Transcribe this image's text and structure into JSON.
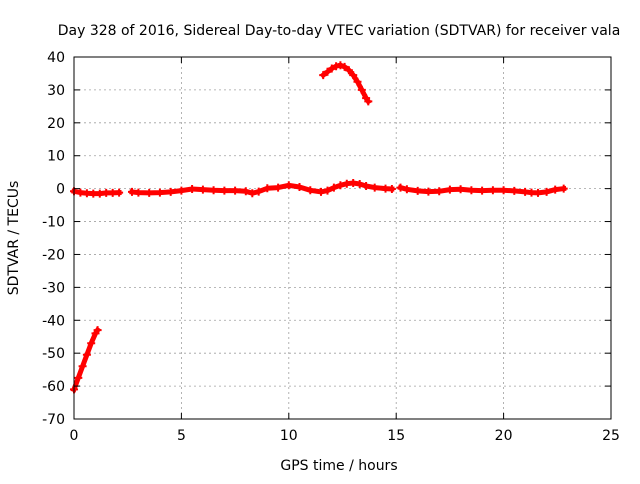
{
  "chart_data": {
    "type": "line",
    "title": "Day 328 of 2016, Sidereal Day-to-day VTEC variation (SDTVAR) for receiver vala",
    "xlabel": "GPS time / hours",
    "ylabel": "SDTVAR / TECUs",
    "xlim": [
      0,
      25
    ],
    "ylim": [
      -70,
      40
    ],
    "x_ticks": [
      0,
      5,
      10,
      15,
      20,
      25
    ],
    "y_ticks": [
      -70,
      -60,
      -50,
      -40,
      -30,
      -20,
      -10,
      0,
      10,
      20,
      30,
      40
    ],
    "grid": true,
    "series": [
      {
        "name": "SDTVAR",
        "color": "#ff0000",
        "segments": [
          {
            "x": [
              0.0,
              0.2,
              0.4,
              0.6,
              0.8,
              1.0,
              1.1
            ],
            "y": [
              -61.0,
              -57.5,
              -54.0,
              -50.5,
              -47.0,
              -44.0,
              -43.0
            ]
          },
          {
            "x": [
              0.0,
              0.3,
              0.6,
              0.9,
              1.2,
              1.5,
              1.8,
              2.1
            ],
            "y": [
              -0.8,
              -1.2,
              -1.4,
              -1.5,
              -1.5,
              -1.3,
              -1.3,
              -1.2
            ]
          },
          {
            "x": [
              2.7,
              3.0,
              3.5,
              4.0,
              4.5,
              5.0,
              5.5,
              6.0,
              6.5,
              7.0,
              7.5,
              8.0,
              8.3,
              8.6,
              9.0,
              9.5,
              10.0,
              10.5,
              11.0,
              11.5,
              11.8,
              12.1,
              12.4,
              12.7,
              13.0,
              13.3,
              13.6,
              14.0,
              14.5,
              14.8
            ],
            "y": [
              -1.0,
              -1.2,
              -1.3,
              -1.2,
              -1.0,
              -0.6,
              -0.1,
              -0.3,
              -0.5,
              -0.6,
              -0.6,
              -0.8,
              -1.4,
              -0.9,
              0.1,
              0.3,
              1.0,
              0.5,
              -0.5,
              -1.0,
              -0.6,
              0.3,
              1.0,
              1.5,
              1.7,
              1.4,
              0.8,
              0.3,
              0.0,
              -0.1
            ]
          },
          {
            "x": [
              15.2,
              15.5,
              16.0,
              16.5,
              17.0,
              17.5,
              18.0,
              18.5,
              19.0,
              19.5,
              20.0,
              20.5,
              21.0,
              21.3,
              21.6,
              22.0,
              22.4,
              22.8
            ],
            "y": [
              0.3,
              -0.2,
              -0.7,
              -0.9,
              -0.8,
              -0.3,
              -0.2,
              -0.5,
              -0.6,
              -0.5,
              -0.5,
              -0.7,
              -1.0,
              -1.2,
              -1.3,
              -1.0,
              -0.3,
              0.0
            ]
          },
          {
            "x": [
              11.6,
              11.8,
              12.0,
              12.2,
              12.4,
              12.6,
              12.8,
              13.0,
              13.2,
              13.4,
              13.6,
              13.7
            ],
            "y": [
              34.5,
              35.5,
              36.5,
              37.2,
              37.5,
              37.0,
              36.0,
              34.5,
              32.5,
              30.0,
              27.5,
              26.5
            ]
          }
        ]
      }
    ]
  }
}
